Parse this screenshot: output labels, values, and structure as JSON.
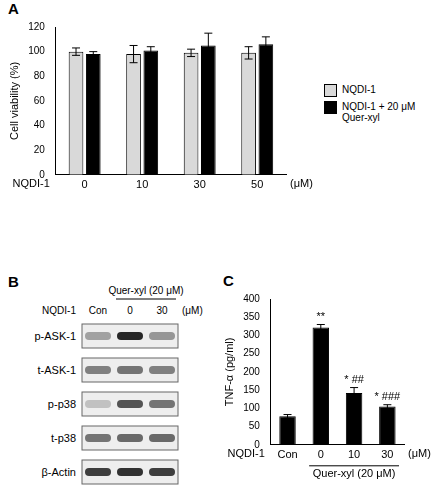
{
  "chart_data": [
    {
      "panel": "A",
      "type": "bar",
      "categories": [
        "0",
        "10",
        "30",
        "50"
      ],
      "xlabel": "NQDI-1",
      "xunit": "(μM)",
      "ylabel": "Cell viability (%)",
      "ylim": [
        0,
        120
      ],
      "yticks": [
        0,
        20,
        40,
        60,
        80,
        100,
        120
      ],
      "grid": false,
      "legend": "right",
      "series": [
        {
          "name": "NQDI-1",
          "color": "#d9d9d9",
          "values": [
            100,
            98,
            99,
            99
          ],
          "errors": [
            3,
            7,
            3,
            5
          ]
        },
        {
          "name": "NQDI-1 + 20 μM Quer-xyl",
          "color": "#000000",
          "values": [
            98,
            101,
            105,
            106
          ],
          "errors": [
            2,
            3,
            10,
            6
          ]
        }
      ]
    },
    {
      "panel": "C",
      "type": "bar",
      "categories": [
        "Con",
        "0",
        "10",
        "30"
      ],
      "values": [
        78,
        322,
        142,
        105
      ],
      "errors": [
        5,
        8,
        15,
        5
      ],
      "significance": [
        null,
        "**",
        "* ##",
        "* ###"
      ],
      "color": "#000000",
      "xlabel": "NQDI-1",
      "xunit": "(μM)",
      "group": {
        "label": "Quer-xyl (20 μM)",
        "categories": [
          "0",
          "10",
          "30"
        ]
      },
      "ylabel": "TNF-α (pg/ml)",
      "ylim": [
        0,
        400
      ],
      "yticks": [
        0,
        50,
        100,
        150,
        200,
        250,
        300,
        350,
        400
      ],
      "grid": false
    }
  ],
  "blot": {
    "panel": "B",
    "treatment": "Quer-xyl (20 μM)",
    "treated_lanes": [
      "0",
      "30"
    ],
    "row_label": "NQDI-1",
    "lanes": [
      "Con",
      "0",
      "30"
    ],
    "unit": "(μM)",
    "rows": [
      {
        "label": "p-ASK-1",
        "intensity": [
          0.35,
          0.9,
          0.4
        ]
      },
      {
        "label": "t-ASK-1",
        "intensity": [
          0.5,
          0.55,
          0.5
        ]
      },
      {
        "label": "p-p38",
        "intensity": [
          0.2,
          0.7,
          0.55
        ]
      },
      {
        "label": "t-p38",
        "intensity": [
          0.55,
          0.6,
          0.6
        ]
      },
      {
        "label": "β-Actin",
        "intensity": [
          0.8,
          0.85,
          0.8
        ]
      }
    ]
  }
}
